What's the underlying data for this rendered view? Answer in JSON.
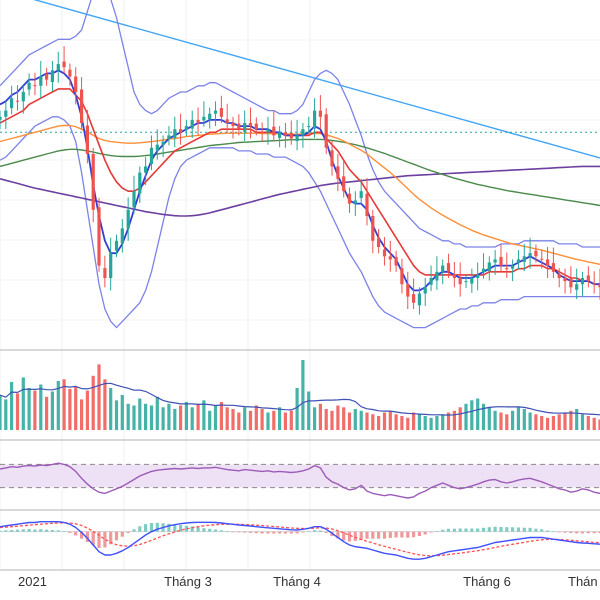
{
  "chart_data": {
    "type": "candlestick",
    "title": "",
    "x_ticks": [
      "2021",
      "Tháng 3",
      "Tháng 4",
      "Tháng 6",
      "Thán"
    ],
    "x_tick_index": [
      0,
      31,
      50,
      83,
      100
    ],
    "n_bars": 104,
    "price_range": [
      0,
      100
    ],
    "grid": true,
    "colors": {
      "up": "#26a69a",
      "down": "#ef5350",
      "ema_fast": "#2f3fd2",
      "ema_slow": "#e53935",
      "ema_orange": "#ff8f3a",
      "ema_green": "#4a8a4a",
      "ma_purple": "#6c3fa0",
      "bollinger": "#7b83e8",
      "trendline": "#42a5f5",
      "dotted_level": "#26a69a",
      "rsi_line": "#9c5bb8",
      "rsi_band": "#efe1f5",
      "macd_line": "#3f51ff",
      "macd_signal": "#ff5252"
    },
    "price_series": {
      "close": [
        72,
        74,
        78,
        77,
        80,
        83,
        82,
        85,
        84,
        87,
        89,
        88,
        85,
        80,
        70,
        60,
        42,
        24,
        20,
        28,
        32,
        36,
        42,
        48,
        54,
        56,
        62,
        63,
        64,
        66,
        68,
        67,
        69,
        71,
        70,
        72,
        73,
        74,
        72,
        70,
        69,
        68,
        70,
        69,
        68,
        67,
        68,
        66,
        67,
        66,
        65,
        66,
        68,
        69,
        74,
        72,
        62,
        56,
        52,
        48,
        44,
        45,
        48,
        40,
        32,
        30,
        27,
        26,
        24,
        18,
        14,
        12,
        15,
        17,
        20,
        22,
        24,
        22,
        20,
        18,
        19,
        20,
        21,
        23,
        25,
        26,
        24,
        23,
        24,
        26,
        27,
        28,
        27,
        26,
        24,
        22,
        20,
        19,
        17,
        18,
        20,
        19,
        18,
        17
      ],
      "ema_fast": [
        76,
        77,
        79,
        80,
        82,
        84,
        84,
        85,
        86,
        86,
        87,
        86,
        84,
        79,
        72,
        62,
        50,
        40,
        32,
        28,
        28,
        31,
        36,
        42,
        48,
        53,
        58,
        61,
        63,
        65,
        66,
        67,
        68,
        69,
        70,
        70,
        71,
        71,
        71,
        70,
        70,
        69,
        69,
        69,
        68,
        68,
        68,
        67,
        67,
        66,
        66,
        66,
        66,
        67,
        69,
        68,
        64,
        58,
        53,
        49,
        45,
        44,
        44,
        42,
        37,
        33,
        30,
        28,
        26,
        22,
        18,
        16,
        16,
        17,
        19,
        21,
        22,
        22,
        21,
        20,
        20,
        20,
        21,
        22,
        23,
        24,
        24,
        24,
        24,
        25,
        26,
        27,
        26,
        25,
        24,
        23,
        21,
        20,
        19,
        19,
        19,
        19,
        18,
        18
      ],
      "ema_slow": [
        70,
        71,
        72,
        73,
        74,
        76,
        77,
        78,
        79,
        80,
        81,
        81,
        81,
        79,
        77,
        73,
        68,
        63,
        58,
        54,
        51,
        49,
        48,
        48,
        49,
        51,
        53,
        55,
        57,
        59,
        61,
        62,
        63,
        64,
        65,
        66,
        67,
        67,
        68,
        68,
        68,
        68,
        68,
        68,
        67,
        67,
        67,
        67,
        67,
        66,
        66,
        66,
        66,
        66,
        67,
        67,
        65,
        63,
        61,
        58,
        55,
        53,
        51,
        48,
        45,
        42,
        39,
        36,
        33,
        30,
        27,
        24,
        22,
        21,
        21,
        21,
        21,
        21,
        21,
        21,
        21,
        21,
        21,
        21,
        22,
        22,
        22,
        22,
        22,
        23,
        23,
        24,
        24,
        24,
        23,
        23,
        22,
        21,
        20,
        20,
        19,
        19,
        18,
        18
      ],
      "ema_orange": [
        64,
        64.5,
        65,
        65.5,
        66,
        66.5,
        67,
        67.5,
        68,
        68.5,
        69,
        69.2,
        69.2,
        68.8,
        68,
        67,
        66,
        65,
        64.4,
        64,
        63.8,
        63.6,
        63.5,
        63.5,
        63.6,
        63.8,
        64,
        64.2,
        64.5,
        64.8,
        65,
        65.3,
        65.6,
        65.8,
        66,
        66.2,
        66.4,
        66.5,
        66.6,
        66.7,
        66.7,
        66.7,
        66.7,
        66.7,
        66.7,
        66.6,
        66.6,
        66.5,
        66.5,
        66.5,
        66.4,
        66.4,
        66.4,
        66.5,
        66.6,
        66.6,
        66.2,
        65.6,
        65,
        64.2,
        63.2,
        62.2,
        61.2,
        60,
        58.5,
        57,
        55.5,
        54,
        52.4,
        50.6,
        48.8,
        47,
        45.4,
        44,
        42.6,
        41.4,
        40.3,
        39.2,
        38.2,
        37.2,
        36.3,
        35.4,
        34.6,
        33.9,
        33.3,
        32.7,
        32.1,
        31.5,
        31,
        30.6,
        30.2,
        29.8,
        29.4,
        29,
        28.5,
        28,
        27.5,
        27,
        26.5,
        26,
        25.6,
        25.2,
        24.8,
        24.4
      ],
      "ema_green": [
        56,
        56.5,
        57,
        57.5,
        58,
        58.5,
        59,
        59.5,
        60,
        60.5,
        61,
        61.3,
        61.5,
        61.5,
        61.3,
        61,
        60.6,
        60.2,
        59.8,
        59.5,
        59.3,
        59.2,
        59.2,
        59.2,
        59.3,
        59.5,
        59.7,
        60,
        60.3,
        60.6,
        60.9,
        61.2,
        61.5,
        61.8,
        62.1,
        62.4,
        62.7,
        62.9,
        63.1,
        63.3,
        63.5,
        63.7,
        63.8,
        63.9,
        64,
        64.1,
        64.2,
        64.3,
        64.4,
        64.5,
        64.6,
        64.6,
        64.7,
        64.7,
        64.7,
        64.7,
        64.6,
        64.4,
        64.1,
        63.8,
        63.4,
        63,
        62.5,
        62,
        61.4,
        60.8,
        60.2,
        59.5,
        58.8,
        58.1,
        57.4,
        56.7,
        56,
        55.3,
        54.6,
        54,
        53.4,
        52.8,
        52.2,
        51.7,
        51.2,
        50.7,
        50.2,
        49.8,
        49.4,
        49,
        48.6,
        48.2,
        47.9,
        47.6,
        47.3,
        47,
        46.7,
        46.4,
        46.1,
        45.8,
        45.5,
        45.2,
        44.9,
        44.6,
        44.3,
        44,
        43.7,
        43.4
      ],
      "ma_purple": [
        52,
        51.5,
        51,
        50.5,
        50,
        49.5,
        49,
        48.6,
        48.2,
        47.8,
        47.4,
        47,
        46.6,
        46.2,
        45.8,
        45.4,
        45,
        44.6,
        44.2,
        43.8,
        43.4,
        43,
        42.6,
        42.2,
        41.8,
        41.4,
        41.1,
        40.8,
        40.5,
        40.3,
        40.1,
        40,
        40,
        40.1,
        40.3,
        40.6,
        41,
        41.5,
        42,
        42.5,
        43,
        43.5,
        44,
        44.5,
        45,
        45.5,
        46,
        46.5,
        47,
        47.4,
        47.8,
        48.2,
        48.6,
        49,
        49.4,
        49.8,
        50.1,
        50.4,
        50.6,
        50.8,
        51,
        51.2,
        51.4,
        51.6,
        51.8,
        52,
        52.2,
        52.4,
        52.6,
        52.8,
        53,
        53.1,
        53.2,
        53.3,
        53.4,
        53.5,
        53.6,
        53.7,
        53.8,
        53.9,
        54,
        54.1,
        54.2,
        54.3,
        54.4,
        54.5,
        54.6,
        54.7,
        54.8,
        54.9,
        55,
        55.1,
        55.2,
        55.3,
        55.4,
        55.5,
        55.6,
        55.7,
        55.8,
        55.9,
        56,
        56,
        56,
        56
      ],
      "bb_upper": [
        82,
        84,
        86,
        88,
        90,
        92,
        93,
        94,
        95,
        96,
        97,
        97,
        97,
        98,
        100,
        106,
        112,
        116,
        114,
        110,
        104,
        96,
        88,
        80,
        76,
        74,
        73,
        74,
        76,
        78,
        79,
        80,
        80,
        81,
        82,
        82,
        83,
        83,
        82,
        81,
        80,
        79,
        78,
        77,
        76,
        75,
        74,
        74,
        73,
        73,
        73,
        74,
        76,
        80,
        84,
        86,
        87,
        86,
        84,
        80,
        76,
        71,
        66,
        60,
        55,
        51,
        48,
        46,
        44,
        42,
        40,
        38,
        36,
        35,
        34,
        33,
        32,
        32,
        31,
        31,
        30,
        30,
        30,
        30,
        30,
        30,
        31,
        31,
        31,
        31,
        32,
        32,
        32,
        32,
        32,
        32,
        31,
        31,
        31,
        31,
        30,
        30,
        30,
        30
      ],
      "bb_lower": [
        58,
        59,
        61,
        63,
        65,
        67,
        69,
        70,
        71,
        72,
        72,
        71,
        69,
        64,
        54,
        42,
        30,
        18,
        10,
        6,
        4,
        6,
        8,
        10,
        12,
        16,
        22,
        30,
        38,
        46,
        52,
        56,
        58,
        59,
        60,
        61,
        62,
        62,
        62,
        62,
        62,
        61,
        61,
        61,
        60,
        60,
        60,
        59,
        59,
        59,
        58,
        57,
        56,
        54,
        51,
        48,
        44,
        40,
        36,
        32,
        28,
        25,
        22,
        18,
        14,
        11,
        9,
        8,
        7,
        6,
        5,
        4,
        4,
        4,
        5,
        6,
        7,
        8,
        9,
        10,
        10,
        11,
        11,
        12,
        12,
        12,
        13,
        13,
        13,
        13,
        14,
        14,
        14,
        14,
        14,
        14,
        14,
        14,
        14,
        14,
        14,
        14,
        14,
        14
      ],
      "trendline": [
        100,
        98.58
      ]
    },
    "dotted_level": 67,
    "volume": [
      40,
      35,
      55,
      42,
      60,
      48,
      45,
      52,
      38,
      44,
      56,
      58,
      47,
      50,
      35,
      45,
      62,
      75,
      58,
      48,
      34,
      40,
      30,
      28,
      36,
      30,
      28,
      38,
      26,
      30,
      24,
      28,
      32,
      26,
      30,
      34,
      22,
      28,
      32,
      26,
      24,
      20,
      26,
      22,
      28,
      24,
      20,
      22,
      26,
      20,
      22,
      48,
      80,
      44,
      26,
      30,
      24,
      22,
      28,
      26,
      20,
      24,
      22,
      20,
      18,
      16,
      20,
      22,
      18,
      16,
      14,
      20,
      18,
      16,
      14,
      16,
      18,
      20,
      22,
      26,
      30,
      34,
      36,
      30,
      26,
      22,
      20,
      18,
      22,
      26,
      24,
      20,
      18,
      16,
      14,
      16,
      18,
      20,
      22,
      24,
      18,
      16,
      14,
      12
    ],
    "rsi": [
      62,
      64,
      66,
      65,
      67,
      68,
      67,
      69,
      68,
      70,
      72,
      70,
      66,
      58,
      46,
      36,
      28,
      22,
      20,
      24,
      28,
      32,
      38,
      44,
      50,
      54,
      58,
      60,
      61,
      62,
      63,
      62,
      63,
      64,
      63,
      64,
      64,
      65,
      63,
      61,
      60,
      59,
      61,
      60,
      59,
      58,
      59,
      57,
      58,
      57,
      56,
      57,
      59,
      62,
      68,
      64,
      48,
      40,
      36,
      30,
      26,
      28,
      34,
      24,
      20,
      18,
      16,
      18,
      16,
      14,
      12,
      14,
      20,
      24,
      30,
      34,
      38,
      34,
      30,
      28,
      30,
      33,
      36,
      40,
      43,
      44,
      40,
      38,
      40,
      43,
      45,
      46,
      43,
      40,
      36,
      32,
      28,
      26,
      22,
      24,
      28,
      26,
      22,
      20
    ],
    "rsi_range": [
      0,
      100
    ],
    "rsi_band": [
      30,
      70
    ],
    "macd": {
      "macd": [
        3,
        3.5,
        4,
        4.5,
        5,
        5.5,
        5.5,
        6,
        6,
        6,
        6,
        5.5,
        4.5,
        2.5,
        -0.5,
        -4,
        -8,
        -12,
        -14,
        -14,
        -13,
        -11.5,
        -9.5,
        -7,
        -4.5,
        -2,
        0,
        1.5,
        2.5,
        3.5,
        4.2,
        4.8,
        5.2,
        5.5,
        5.6,
        5.6,
        5.6,
        5.5,
        5.2,
        4.8,
        4.4,
        4,
        3.7,
        3.4,
        3,
        2.6,
        2.3,
        2,
        1.7,
        1.4,
        1.1,
        1,
        1.4,
        2,
        3,
        3,
        1.5,
        -1,
        -3.5,
        -6,
        -8,
        -9,
        -9.5,
        -10,
        -11,
        -12,
        -13,
        -13.5,
        -14,
        -15,
        -16,
        -16.5,
        -16.5,
        -16,
        -15,
        -14,
        -13,
        -12,
        -11.5,
        -11,
        -10.5,
        -10,
        -9.5,
        -8.5,
        -7.5,
        -6.5,
        -6,
        -5.5,
        -5,
        -4.5,
        -4,
        -3.5,
        -3.5,
        -3.5,
        -4,
        -4.5,
        -5,
        -5.5,
        -6,
        -6.5,
        -6.8,
        -7,
        -7.3,
        -7.5
      ],
      "signal": [
        2.5,
        2.7,
        3,
        3.3,
        3.6,
        3.9,
        4.2,
        4.5,
        4.8,
        5,
        5.2,
        5.3,
        5.2,
        4.7,
        3.7,
        2.2,
        0.2,
        -2.2,
        -4.6,
        -6.5,
        -7.8,
        -8.5,
        -8.7,
        -8.4,
        -7.7,
        -6.5,
        -5.2,
        -3.8,
        -2.5,
        -1.3,
        -0.2,
        0.8,
        1.7,
        2.4,
        3,
        3.5,
        3.9,
        4.2,
        4.4,
        4.5,
        4.5,
        4.4,
        4.3,
        4.1,
        3.9,
        3.7,
        3.4,
        3.1,
        2.8,
        2.5,
        2.2,
        2,
        1.9,
        1.9,
        2.1,
        2.3,
        2.2,
        1.6,
        0.6,
        -0.7,
        -2.1,
        -3.5,
        -4.7,
        -5.8,
        -6.8,
        -7.8,
        -8.8,
        -9.7,
        -10.6,
        -11.5,
        -12.4,
        -13.2,
        -13.9,
        -14.3,
        -14.5,
        -14.4,
        -14.1,
        -13.7,
        -13.3,
        -12.9,
        -12.4,
        -11.9,
        -11.4,
        -10.8,
        -10.2,
        -9.5,
        -8.8,
        -8.2,
        -7.6,
        -7,
        -6.4,
        -5.8,
        -5.3,
        -4.9,
        -4.7,
        -4.6,
        -4.7,
        -4.9,
        -5.2,
        -5.5,
        -5.8,
        -6.1,
        -6.4,
        -6.7
      ]
    }
  }
}
